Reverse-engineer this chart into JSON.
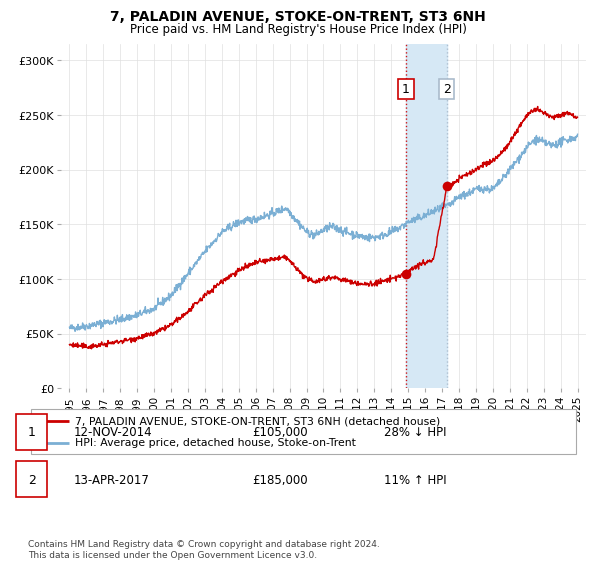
{
  "title": "7, PALADIN AVENUE, STOKE-ON-TRENT, ST3 6NH",
  "subtitle": "Price paid vs. HM Land Registry's House Price Index (HPI)",
  "ylabel_ticks": [
    "£0",
    "£50K",
    "£100K",
    "£150K",
    "£200K",
    "£250K",
    "£300K"
  ],
  "ytick_values": [
    0,
    50000,
    100000,
    150000,
    200000,
    250000,
    300000
  ],
  "ylim": [
    0,
    315000
  ],
  "xlim_start": 1994.5,
  "xlim_end": 2025.5,
  "legend_line1": "7, PALADIN AVENUE, STOKE-ON-TRENT, ST3 6NH (detached house)",
  "legend_line2": "HPI: Average price, detached house, Stoke-on-Trent",
  "sale1_date": "12-NOV-2014",
  "sale1_price": "£105,000",
  "sale1_hpi": "28% ↓ HPI",
  "sale2_date": "13-APR-2017",
  "sale2_price": "£185,000",
  "sale2_hpi": "11% ↑ HPI",
  "footer": "Contains HM Land Registry data © Crown copyright and database right 2024.\nThis data is licensed under the Open Government Licence v3.0.",
  "red_color": "#cc0000",
  "blue_color": "#7bafd4",
  "shaded_color": "#d6e8f5",
  "sale1_x": 2014.87,
  "sale2_x": 2017.28,
  "sale1_y": 105000,
  "sale2_y": 185000,
  "hpi_anchors": [
    [
      1995.0,
      55000
    ],
    [
      1996.0,
      57000
    ],
    [
      1997.0,
      60000
    ],
    [
      1998.0,
      63000
    ],
    [
      1999.0,
      67000
    ],
    [
      2000.0,
      73000
    ],
    [
      2001.0,
      85000
    ],
    [
      2002.0,
      105000
    ],
    [
      2003.0,
      125000
    ],
    [
      2004.0,
      143000
    ],
    [
      2005.0,
      152000
    ],
    [
      2006.0,
      155000
    ],
    [
      2007.0,
      160000
    ],
    [
      2007.8,
      165000
    ],
    [
      2008.5,
      152000
    ],
    [
      2009.0,
      143000
    ],
    [
      2009.5,
      140000
    ],
    [
      2010.0,
      145000
    ],
    [
      2010.5,
      148000
    ],
    [
      2011.0,
      145000
    ],
    [
      2011.5,
      142000
    ],
    [
      2012.0,
      140000
    ],
    [
      2012.5,
      138000
    ],
    [
      2013.0,
      138000
    ],
    [
      2013.5,
      140000
    ],
    [
      2014.0,
      143000
    ],
    [
      2014.5,
      147000
    ],
    [
      2015.0,
      152000
    ],
    [
      2015.5,
      155000
    ],
    [
      2016.0,
      158000
    ],
    [
      2016.5,
      162000
    ],
    [
      2017.0,
      165000
    ],
    [
      2017.5,
      168000
    ],
    [
      2018.0,
      175000
    ],
    [
      2018.5,
      178000
    ],
    [
      2019.0,
      182000
    ],
    [
      2019.5,
      183000
    ],
    [
      2020.0,
      182000
    ],
    [
      2020.5,
      190000
    ],
    [
      2021.0,
      200000
    ],
    [
      2021.5,
      210000
    ],
    [
      2022.0,
      220000
    ],
    [
      2022.5,
      228000
    ],
    [
      2023.0,
      225000
    ],
    [
      2023.5,
      222000
    ],
    [
      2024.0,
      225000
    ],
    [
      2024.5,
      228000
    ],
    [
      2025.0,
      230000
    ]
  ],
  "price_anchors": [
    [
      1995.0,
      40000
    ],
    [
      1996.0,
      38000
    ],
    [
      1997.0,
      40000
    ],
    [
      1998.0,
      43000
    ],
    [
      1999.0,
      46000
    ],
    [
      2000.0,
      50000
    ],
    [
      2001.0,
      58000
    ],
    [
      2002.0,
      70000
    ],
    [
      2003.0,
      85000
    ],
    [
      2004.0,
      98000
    ],
    [
      2005.0,
      108000
    ],
    [
      2006.0,
      115000
    ],
    [
      2007.0,
      118000
    ],
    [
      2007.8,
      120000
    ],
    [
      2008.5,
      108000
    ],
    [
      2009.0,
      100000
    ],
    [
      2009.5,
      98000
    ],
    [
      2010.0,
      100000
    ],
    [
      2010.5,
      102000
    ],
    [
      2011.0,
      100000
    ],
    [
      2011.5,
      98000
    ],
    [
      2012.0,
      96000
    ],
    [
      2012.5,
      95000
    ],
    [
      2013.0,
      96000
    ],
    [
      2013.5,
      98000
    ],
    [
      2014.0,
      100000
    ],
    [
      2014.87,
      105000
    ],
    [
      2015.0,
      108000
    ],
    [
      2015.5,
      112000
    ],
    [
      2016.0,
      115000
    ],
    [
      2016.5,
      118000
    ],
    [
      2017.28,
      185000
    ],
    [
      2017.5,
      185000
    ],
    [
      2018.0,
      192000
    ],
    [
      2018.5,
      196000
    ],
    [
      2019.0,
      200000
    ],
    [
      2019.5,
      205000
    ],
    [
      2020.0,
      208000
    ],
    [
      2020.5,
      215000
    ],
    [
      2021.0,
      225000
    ],
    [
      2021.5,
      238000
    ],
    [
      2022.0,
      250000
    ],
    [
      2022.5,
      255000
    ],
    [
      2023.0,
      252000
    ],
    [
      2023.5,
      248000
    ],
    [
      2024.0,
      250000
    ],
    [
      2024.5,
      252000
    ],
    [
      2025.0,
      248000
    ]
  ]
}
